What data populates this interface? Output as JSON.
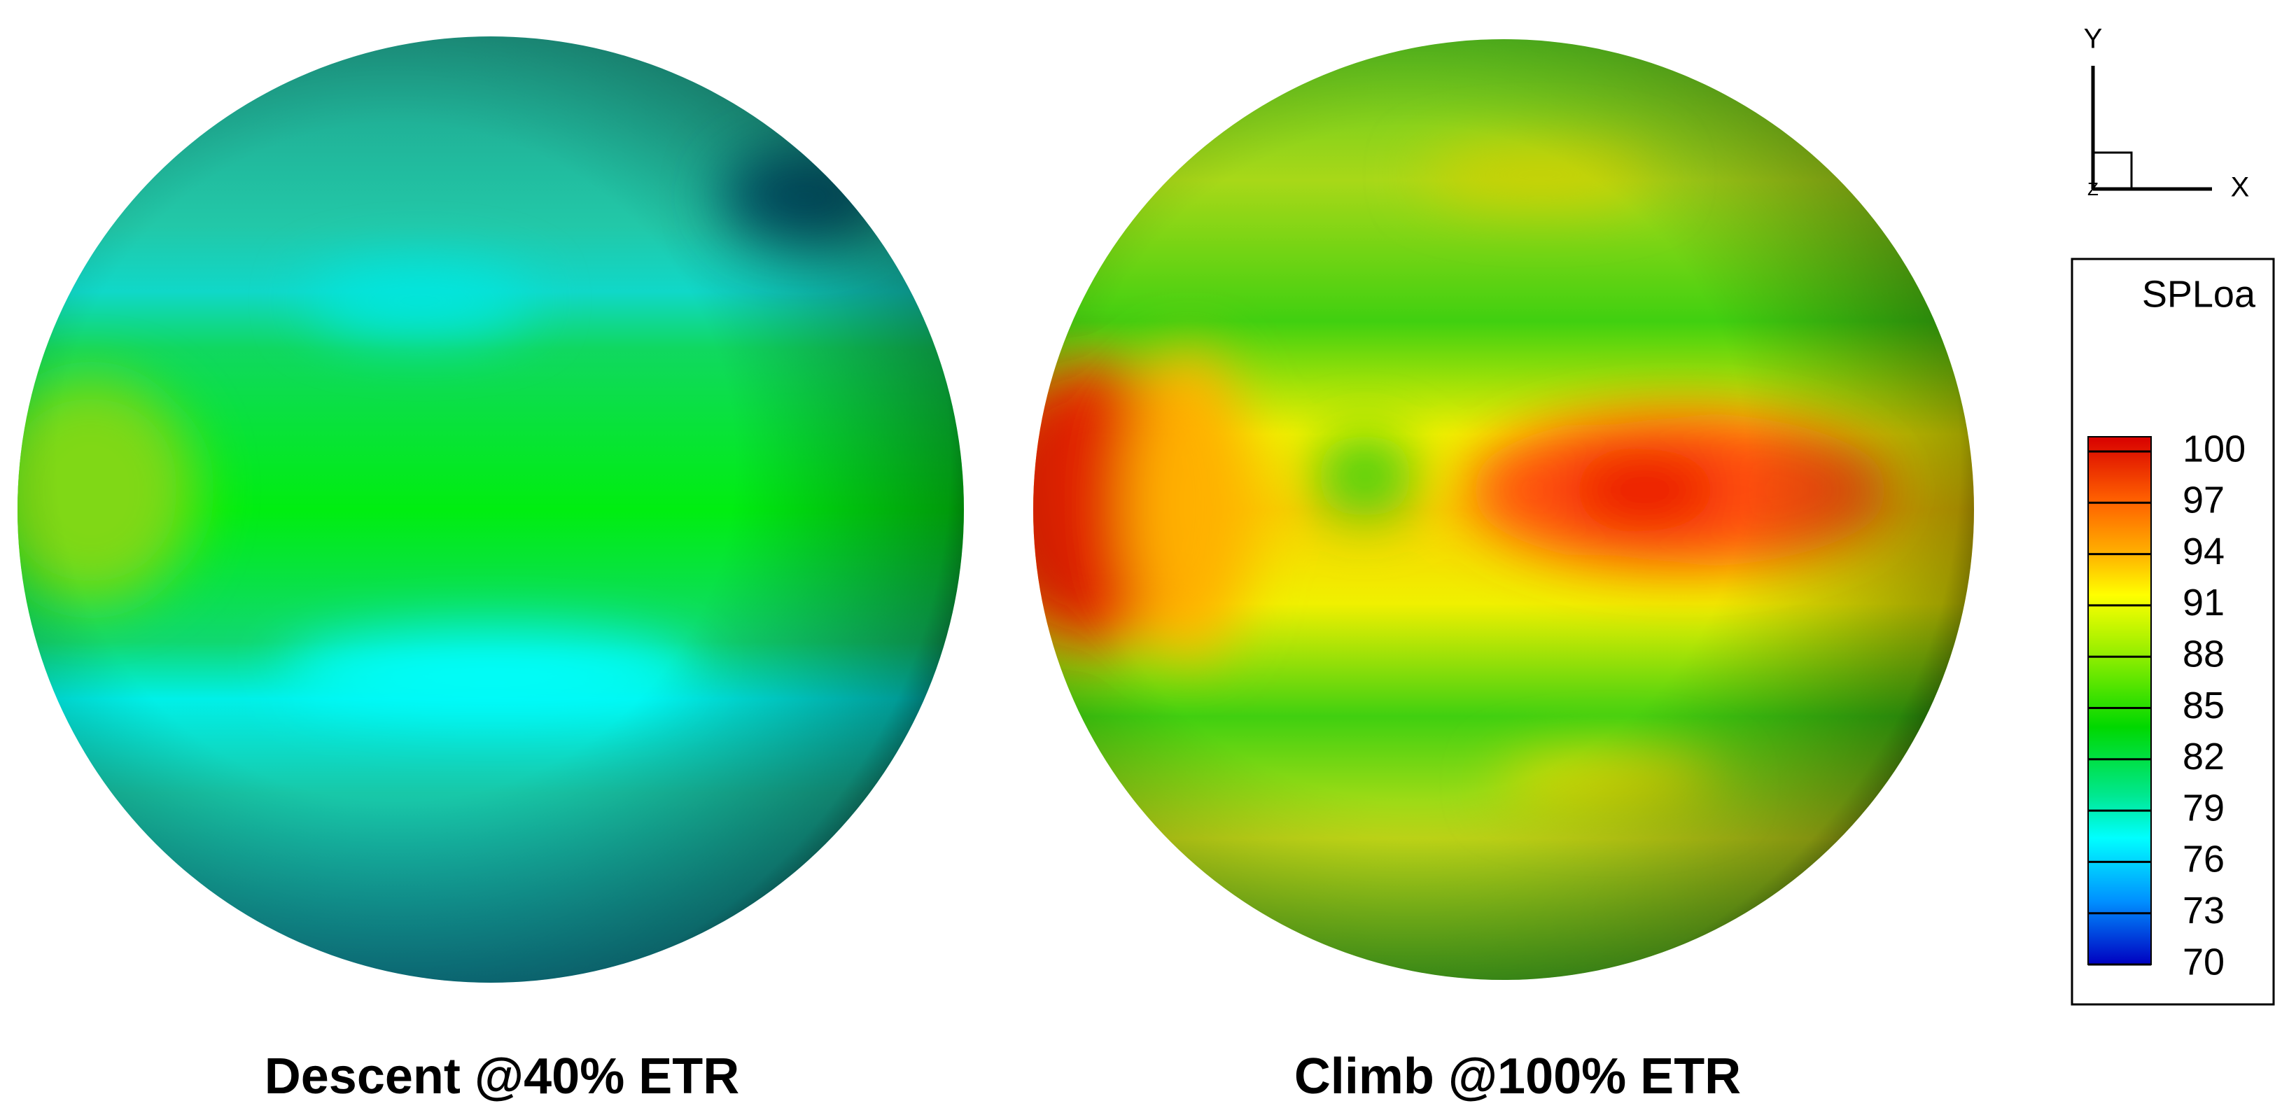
{
  "panels": [
    {
      "title": "Descent @40% ETR"
    },
    {
      "title": "Climb @100% ETR"
    }
  ],
  "triad": {
    "y_label": "Y",
    "x_label": "X",
    "z_label": "Z"
  },
  "legend": {
    "title": "SPLoa",
    "ticks": [
      100,
      97,
      94,
      91,
      88,
      85,
      82,
      79,
      76,
      73,
      70
    ]
  }
}
